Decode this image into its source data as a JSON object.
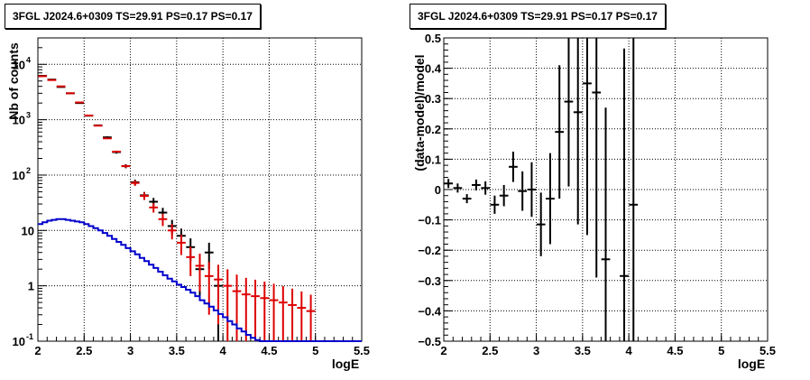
{
  "chart_data": [
    {
      "type": "scatter",
      "title": "3FGL J2024.6+0309 TS=29.91 PS=0.17 PS=0.17",
      "xlabel": "logE",
      "ylabel": "Nb of counts",
      "xlim": [
        2,
        5.5
      ],
      "ylim": [
        0.1,
        30000
      ],
      "y_scale": "log",
      "grid": true,
      "x_ticks": [
        "2",
        "2.5",
        "3",
        "3.5",
        "4",
        "4.5",
        "5",
        "5.5"
      ],
      "y_ticks": [
        "10^{-1}",
        "1",
        "10",
        "10^{2}",
        "10^{3}",
        "10^{4}"
      ],
      "series": [
        {
          "color": "#000000",
          "style": "errorbar",
          "points": [
            {
              "x": 2.05,
              "y": 6200,
              "err": 80
            },
            {
              "x": 2.15,
              "y": 5300,
              "err": 75
            },
            {
              "x": 2.25,
              "y": 3900,
              "err": 62
            },
            {
              "x": 2.35,
              "y": 3000,
              "err": 55
            },
            {
              "x": 2.45,
              "y": 2000,
              "err": 45
            },
            {
              "x": 2.55,
              "y": 1180,
              "err": 34
            },
            {
              "x": 2.65,
              "y": 790,
              "err": 28
            },
            {
              "x": 2.75,
              "y": 480,
              "err": 22
            },
            {
              "x": 2.85,
              "y": 260,
              "err": 16
            },
            {
              "x": 2.95,
              "y": 145,
              "err": 12
            },
            {
              "x": 3.05,
              "y": 74,
              "err": 8.6
            },
            {
              "x": 3.15,
              "y": 43,
              "err": 6.5
            },
            {
              "x": 3.25,
              "y": 33,
              "err": 5.7
            },
            {
              "x": 3.35,
              "y": 21,
              "err": 4.6
            },
            {
              "x": 3.45,
              "y": 12,
              "err": 3.5
            },
            {
              "x": 3.55,
              "y": 8,
              "err": 2.8
            },
            {
              "x": 3.65,
              "y": 5,
              "err": 2.2
            },
            {
              "x": 3.75,
              "y": 2,
              "err": 1.4
            },
            {
              "x": 3.85,
              "y": 4,
              "err": 2
            },
            {
              "x": 3.95,
              "y": 1,
              "err": 1
            }
          ]
        },
        {
          "color": "#dd0000",
          "style": "errorbar",
          "points": [
            {
              "x": 2.05,
              "y": 6100,
              "err": 10
            },
            {
              "x": 2.15,
              "y": 5200,
              "err": 10
            },
            {
              "x": 2.25,
              "y": 4000,
              "err": 10
            },
            {
              "x": 2.35,
              "y": 3000,
              "err": 10
            },
            {
              "x": 2.45,
              "y": 2050,
              "err": 10
            },
            {
              "x": 2.55,
              "y": 1190,
              "err": 10
            },
            {
              "x": 2.65,
              "y": 780,
              "err": 10
            },
            {
              "x": 2.75,
              "y": 460,
              "err": 10
            },
            {
              "x": 2.85,
              "y": 265,
              "err": 10
            },
            {
              "x": 2.95,
              "y": 145,
              "err": 8
            },
            {
              "x": 3.05,
              "y": 72,
              "err": 8
            },
            {
              "x": 3.15,
              "y": 42,
              "err": 6.5
            },
            {
              "x": 3.25,
              "y": 26,
              "err": 5
            },
            {
              "x": 3.35,
              "y": 16,
              "err": 4
            },
            {
              "x": 3.45,
              "y": 10,
              "err": 3.1
            },
            {
              "x": 3.55,
              "y": 6,
              "err": 2.4
            },
            {
              "x": 3.65,
              "y": 3.3,
              "err": 1.8
            },
            {
              "x": 3.75,
              "y": 2.3,
              "err": 1.5
            },
            {
              "x": 3.85,
              "y": 1.5,
              "err": 1.2
            },
            {
              "x": 3.95,
              "y": 1.3,
              "err": 1.1
            },
            {
              "x": 4.05,
              "y": 1.0,
              "err": 0.99
            },
            {
              "x": 4.15,
              "y": 0.8,
              "err": 0.79
            },
            {
              "x": 4.25,
              "y": 0.7,
              "err": 0.69
            },
            {
              "x": 4.35,
              "y": 0.65,
              "err": 0.64
            },
            {
              "x": 4.45,
              "y": 0.6,
              "err": 0.59
            },
            {
              "x": 4.55,
              "y": 0.55,
              "err": 0.54
            },
            {
              "x": 4.65,
              "y": 0.5,
              "err": 0.49
            },
            {
              "x": 4.75,
              "y": 0.45,
              "err": 0.44
            },
            {
              "x": 4.85,
              "y": 0.4,
              "err": 0.39
            },
            {
              "x": 4.95,
              "y": 0.35,
              "err": 0.34
            }
          ]
        },
        {
          "color": "#0000cc",
          "style": "histogram",
          "bin_width": 0.05,
          "x_start": 2.0,
          "values": [
            13,
            14,
            15,
            15.5,
            16,
            16,
            15.5,
            15,
            14.5,
            14,
            13,
            12,
            11,
            10,
            9,
            8,
            7,
            6.2,
            5.5,
            4.8,
            4.2,
            3.7,
            3.2,
            2.8,
            2.4,
            2.1,
            1.8,
            1.55,
            1.35,
            1.2,
            1.05,
            0.95,
            0.85,
            0.75,
            0.65,
            0.55,
            0.48,
            0.42,
            0.36,
            0.31,
            0.27,
            0.23,
            0.2,
            0.17,
            0.15,
            0.13,
            0.115,
            0.105,
            0.1,
            0.1,
            0.1,
            0.1,
            0.1,
            0.1,
            0.1,
            0.1,
            0.1,
            0.1,
            0.1,
            0.1,
            0.1,
            0.1,
            0.1,
            0.1,
            0.1,
            0.1,
            0.1,
            0.1,
            0.1,
            0.1
          ]
        }
      ]
    },
    {
      "type": "scatter",
      "title": "3FGL J2024.6+0309 TS=29.91 PS=0.17 PS=0.17",
      "xlabel": "logE",
      "ylabel": "(data-model)/model",
      "xlim": [
        2,
        5.5
      ],
      "ylim": [
        -0.5,
        0.5
      ],
      "grid": true,
      "x_ticks": [
        "2",
        "2.5",
        "3",
        "3.5",
        "4",
        "4.5",
        "5",
        "5.5"
      ],
      "y_ticks": [
        "−0.5",
        "−0.4",
        "−0.3",
        "−0.2",
        "−0.1",
        "0",
        "0.1",
        "0.2",
        "0.3",
        "0.4",
        "0.5"
      ],
      "series": [
        {
          "color": "#000000",
          "style": "errorbar",
          "points": [
            {
              "x": 2.05,
              "y": 0.02,
              "err": 0.015
            },
            {
              "x": 2.15,
              "y": 0.005,
              "err": 0.015
            },
            {
              "x": 2.25,
              "y": -0.03,
              "err": 0.015
            },
            {
              "x": 2.35,
              "y": 0.015,
              "err": 0.018
            },
            {
              "x": 2.45,
              "y": 0.005,
              "err": 0.022
            },
            {
              "x": 2.55,
              "y": -0.05,
              "err": 0.03
            },
            {
              "x": 2.65,
              "y": -0.02,
              "err": 0.035
            },
            {
              "x": 2.75,
              "y": 0.075,
              "err": 0.05
            },
            {
              "x": 2.85,
              "y": -0.005,
              "err": 0.065
            },
            {
              "x": 2.95,
              "y": 0.0,
              "err": 0.09
            },
            {
              "x": 3.05,
              "y": -0.115,
              "err": 0.105
            },
            {
              "x": 3.15,
              "y": -0.03,
              "err": 0.15
            },
            {
              "x": 3.25,
              "y": 0.19,
              "err": 0.22
            },
            {
              "x": 3.35,
              "y": 0.29,
              "err": 0.28
            },
            {
              "x": 3.45,
              "y": 0.255,
              "err": 0.37
            },
            {
              "x": 3.55,
              "y": 0.35,
              "err": 0.5
            },
            {
              "x": 3.65,
              "y": 0.32,
              "err": 0.61
            },
            {
              "x": 3.75,
              "y": -0.23,
              "err": 0.5
            },
            {
              "x": 3.95,
              "y": -0.285,
              "err": 0.75
            },
            {
              "x": 4.05,
              "y": -0.05,
              "err": 1.0
            }
          ]
        }
      ]
    }
  ]
}
